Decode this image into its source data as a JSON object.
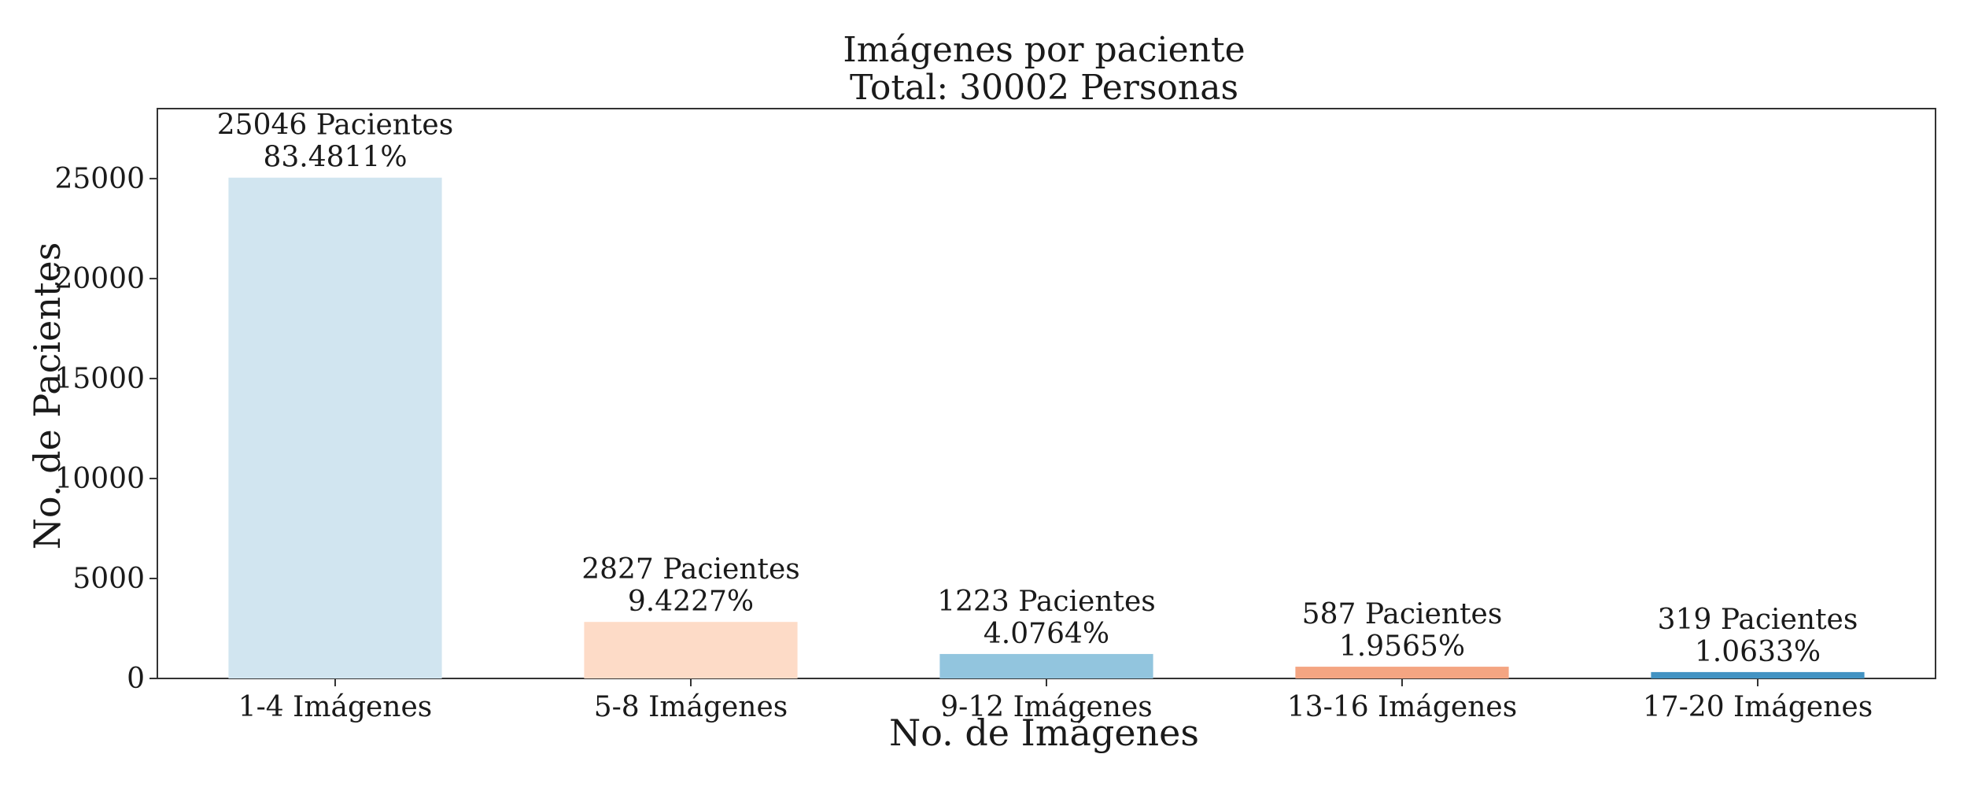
{
  "chart_data": {
    "type": "bar",
    "title": "Imágenes por paciente",
    "subtitle": "Total: 30002 Personas",
    "xlabel": "No. de Imágenes",
    "ylabel": "No. de Pacientes",
    "categories": [
      "1-4 Imágenes",
      "5-8 Imágenes",
      "9-12 Imágenes",
      "13-16 Imágenes",
      "17-20 Imágenes"
    ],
    "values": [
      25046,
      2827,
      1223,
      587,
      319
    ],
    "value_labels": [
      "25046 Pacientes",
      "2827 Pacientes",
      "1223 Pacientes",
      "587 Pacientes",
      "319 Pacientes"
    ],
    "percent_labels": [
      "83.4811%",
      "9.4227%",
      "4.0764%",
      "1.9565%",
      "1.0633%"
    ],
    "colors": [
      "#d1e5f0",
      "#fddbc7",
      "#92c5de",
      "#f4a582",
      "#4393c3"
    ],
    "ylim": [
      0,
      28500
    ],
    "yticks": [
      0,
      5000,
      10000,
      15000,
      20000,
      25000
    ],
    "ytick_labels": [
      "0",
      "5000",
      "10000",
      "15000",
      "20000",
      "25000"
    ],
    "grid": false,
    "legend": "none"
  }
}
